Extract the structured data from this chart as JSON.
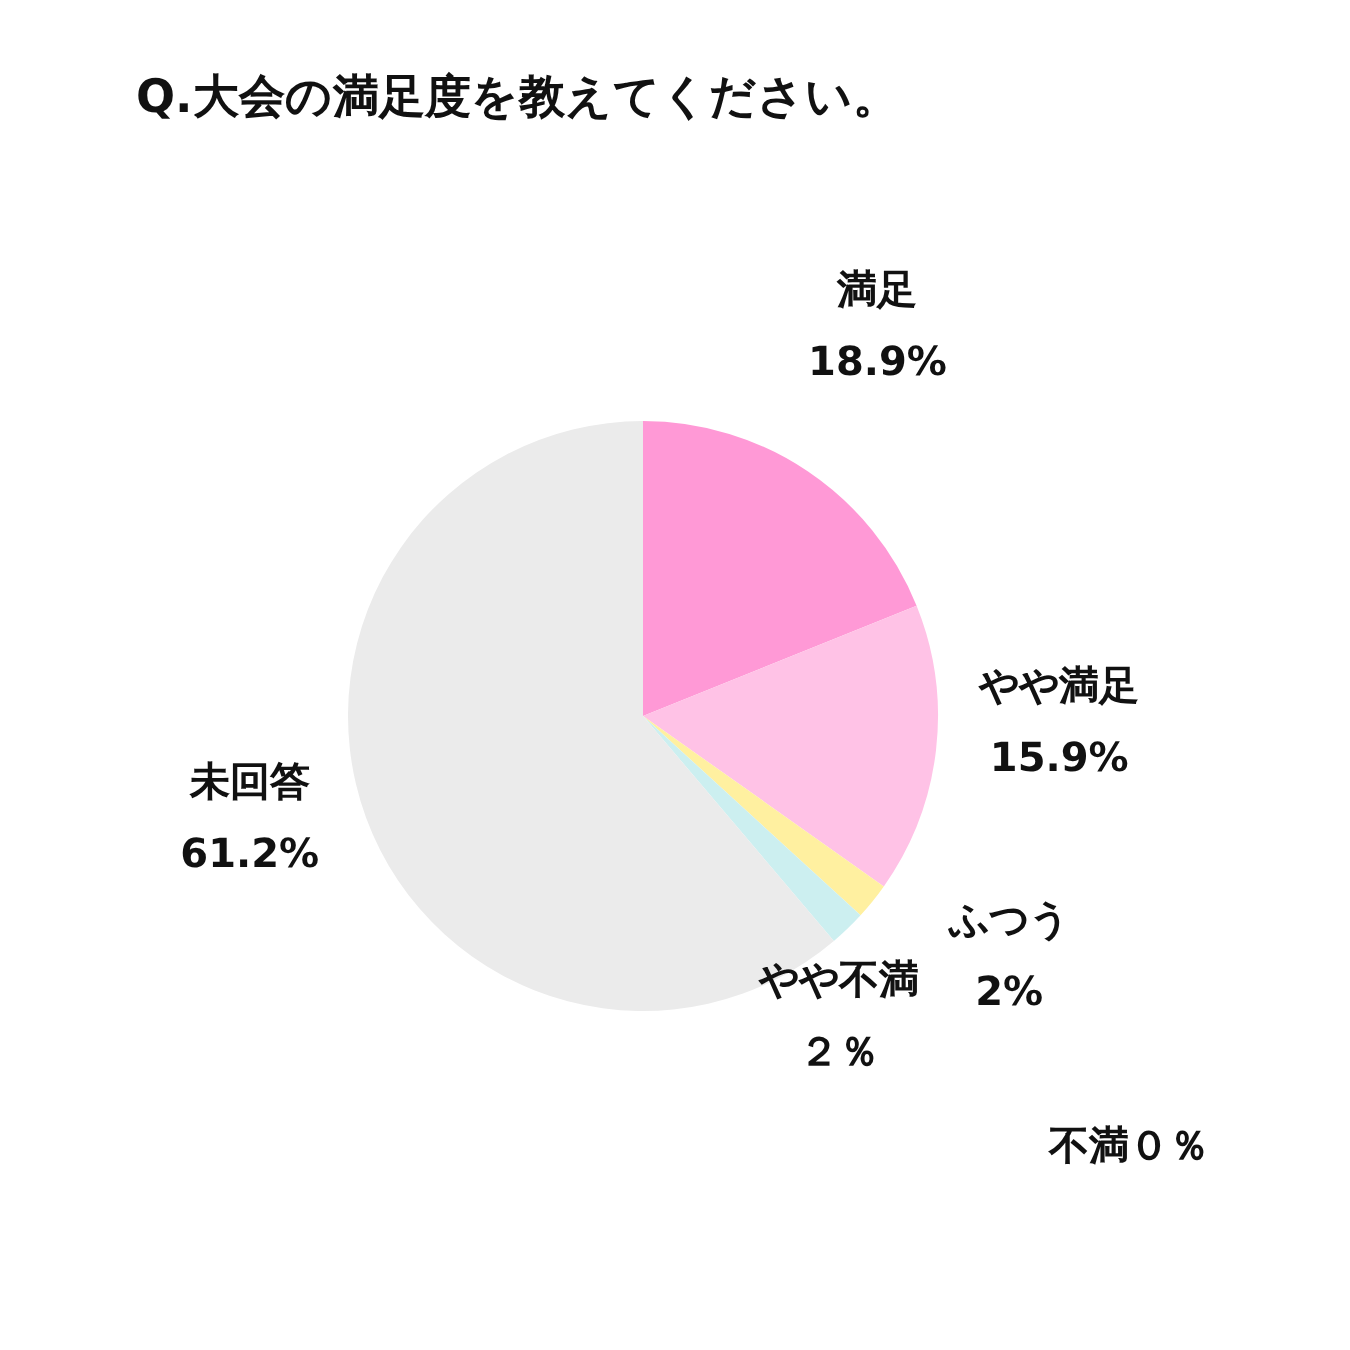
{
  "chart_data": {
    "type": "pie",
    "title": "Q.大会の満足度を教えてください。",
    "categories": [
      "満足",
      "やや満足",
      "ふつう",
      "やや不満",
      "不満",
      "未回答"
    ],
    "values": [
      18.9,
      15.9,
      2,
      2,
      0,
      61.2
    ],
    "value_labels": [
      "18.9%",
      "15.9%",
      "2%",
      "２％",
      "０％",
      "61.2%"
    ],
    "colors": [
      "#ff99d6",
      "#ffc2e6",
      "#fff0a0",
      "#cceff0",
      "#bdbdbd",
      "#ebebeb"
    ],
    "legend": false
  }
}
